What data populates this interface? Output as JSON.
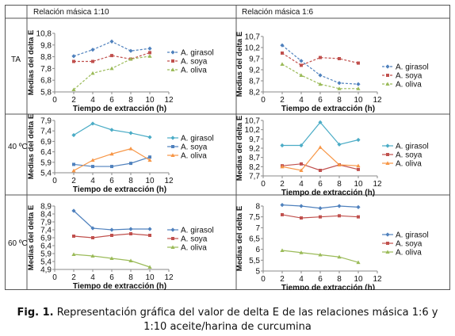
{
  "table": {
    "headers": [
      "Relación másica 1:10",
      "Relación másica 1:6"
    ],
    "row_labels": [
      "TA",
      "40 ºC",
      "60 ºC"
    ]
  },
  "caption": {
    "figure_label": "Fig. 1.",
    "text": " Representación gráfica del valor de delta E de las relaciones másica 1:6 y 1:10 aceite/harina de curcumina"
  },
  "colors": {
    "girasol": "#4f81bd",
    "soya": "#c0504d",
    "oliva": "#9bbb59",
    "turq": "#4bacc6",
    "orange": "#f79646",
    "border": "#555555"
  },
  "chart_data": [
    {
      "type": "line",
      "panel": "TA / 1:10",
      "xlabel": "Tiempo de extracción (h)",
      "ylabel": "Medias del delta E",
      "xlim": [
        0,
        12
      ],
      "xticks": [
        0,
        2,
        4,
        6,
        8,
        10,
        12
      ],
      "ylim": [
        5.8,
        10.8
      ],
      "yticks": [
        "5,8",
        "6,8",
        "7,8",
        "8,8",
        "9,8",
        "10,8"
      ],
      "line_style": "dashed",
      "x": [
        2,
        4,
        6,
        8,
        10
      ],
      "series": [
        {
          "name": "A. girasol",
          "values": [
            8.85,
            9.4,
            10.1,
            9.3,
            9.5
          ]
        },
        {
          "name": "A. soya",
          "values": [
            8.4,
            8.4,
            8.9,
            8.6,
            9.15
          ]
        },
        {
          "name": "A. oliva",
          "values": [
            6.0,
            7.4,
            7.8,
            8.6,
            8.85
          ]
        }
      ],
      "legend_position": "right"
    },
    {
      "type": "line",
      "panel": "TA / 1:6",
      "xlabel": "Tiempo de extracción (h)",
      "ylabel": "Medias del delta E",
      "xlim": [
        0,
        12
      ],
      "xticks": [
        0,
        2,
        4,
        6,
        8,
        10,
        12
      ],
      "ylim": [
        8.2,
        10.7
      ],
      "yticks": [
        "8,2",
        "8,7",
        "9,2",
        "9,7",
        "10,2",
        "10,7"
      ],
      "line_style": "dashed",
      "x": [
        2,
        4,
        6,
        8,
        10
      ],
      "series": [
        {
          "name": "A. girasol",
          "values": [
            10.3,
            9.6,
            8.95,
            8.6,
            8.55
          ]
        },
        {
          "name": "A. soya",
          "values": [
            9.95,
            9.4,
            9.75,
            9.7,
            9.5
          ]
        },
        {
          "name": "A. oliva",
          "values": [
            9.45,
            8.95,
            8.55,
            8.35,
            8.35
          ]
        }
      ],
      "legend_position": "right"
    },
    {
      "type": "line",
      "panel": "40 ºC / 1:10",
      "xlabel": "Tiempo de extracción (h)",
      "ylabel": "Medias del delta E",
      "xlim": [
        0,
        12
      ],
      "xticks": [
        0,
        2,
        4,
        6,
        8,
        10,
        12
      ],
      "ylim": [
        5.4,
        7.9
      ],
      "yticks": [
        "5,4",
        "5,9",
        "6,4",
        "6,9",
        "7,4",
        "7,9"
      ],
      "line_style": "solid",
      "x": [
        2,
        4,
        6,
        8,
        10
      ],
      "series": [
        {
          "name": "A. girasol",
          "values": [
            7.2,
            7.75,
            7.45,
            7.3,
            7.1
          ]
        },
        {
          "name": "A. soya",
          "values": [
            5.8,
            5.7,
            5.7,
            5.85,
            6.15
          ]
        },
        {
          "name": "A. oliva",
          "values": [
            5.5,
            6.0,
            6.3,
            6.55,
            6.0
          ]
        }
      ],
      "legend_position": "right"
    },
    {
      "type": "line",
      "panel": "40 ºC / 1:6",
      "xlabel": "Tiempo de extracción (h)",
      "ylabel": "Medias del delta E",
      "xlim": [
        0,
        12
      ],
      "xticks": [
        0,
        2,
        4,
        6,
        8,
        10,
        12
      ],
      "ylim": [
        7.7,
        10.7
      ],
      "yticks": [
        "7,7",
        "8,2",
        "8,7",
        "9,2",
        "9,7",
        "10,2",
        "10,7"
      ],
      "line_style": "solid",
      "x": [
        2,
        4,
        6,
        8,
        10
      ],
      "series": [
        {
          "name": "A. girasol",
          "values": [
            9.35,
            9.35,
            10.6,
            9.4,
            9.65
          ]
        },
        {
          "name": "A. soya",
          "values": [
            8.25,
            8.35,
            8.0,
            8.3,
            8.05
          ]
        },
        {
          "name": "A. oliva",
          "values": [
            8.2,
            8.0,
            9.25,
            8.3,
            8.25
          ]
        }
      ],
      "legend_position": "right"
    },
    {
      "type": "line",
      "panel": "60 ºC / 1:10",
      "xlabel": "Tiempo de extracción (h)",
      "ylabel": "Medias del delta E",
      "xlim": [
        0,
        12
      ],
      "xticks": [
        0,
        2,
        4,
        6,
        8,
        10,
        12
      ],
      "ylim": [
        4.9,
        8.9
      ],
      "yticks": [
        "4,9",
        "5,4",
        "5,9",
        "6,4",
        "6,9",
        "7,4",
        "7,9",
        "8,4",
        "8,9"
      ],
      "line_style": "solid",
      "x": [
        2,
        4,
        6,
        8,
        10
      ],
      "series": [
        {
          "name": "A. girasol",
          "values": [
            8.6,
            7.5,
            7.4,
            7.45,
            7.45
          ]
        },
        {
          "name": "A. soya",
          "values": [
            7.0,
            6.9,
            7.05,
            7.15,
            7.05
          ]
        },
        {
          "name": "A. oliva",
          "values": [
            5.85,
            5.75,
            5.6,
            5.45,
            5.05
          ]
        }
      ],
      "legend_position": "right"
    },
    {
      "type": "line",
      "panel": "60 ºC / 1:6",
      "xlabel": "Tiempo de extracción (h)",
      "ylabel": "Medias del delta E",
      "xlim": [
        0,
        12
      ],
      "xticks": [
        0,
        2,
        4,
        6,
        8,
        10,
        12
      ],
      "ylim": [
        5,
        8
      ],
      "yticks": [
        "5",
        "5,5",
        "6",
        "6,5",
        "7",
        "7,5",
        "8"
      ],
      "line_style": "solid",
      "x": [
        2,
        4,
        6,
        8,
        10
      ],
      "series": [
        {
          "name": "A. girasol",
          "values": [
            8.05,
            8.0,
            7.9,
            8.0,
            7.95
          ]
        },
        {
          "name": "A. soya",
          "values": [
            7.6,
            7.45,
            7.5,
            7.55,
            7.5
          ]
        },
        {
          "name": "A. oliva",
          "values": [
            5.95,
            5.85,
            5.75,
            5.65,
            5.4
          ]
        }
      ],
      "legend_position": "right"
    }
  ]
}
